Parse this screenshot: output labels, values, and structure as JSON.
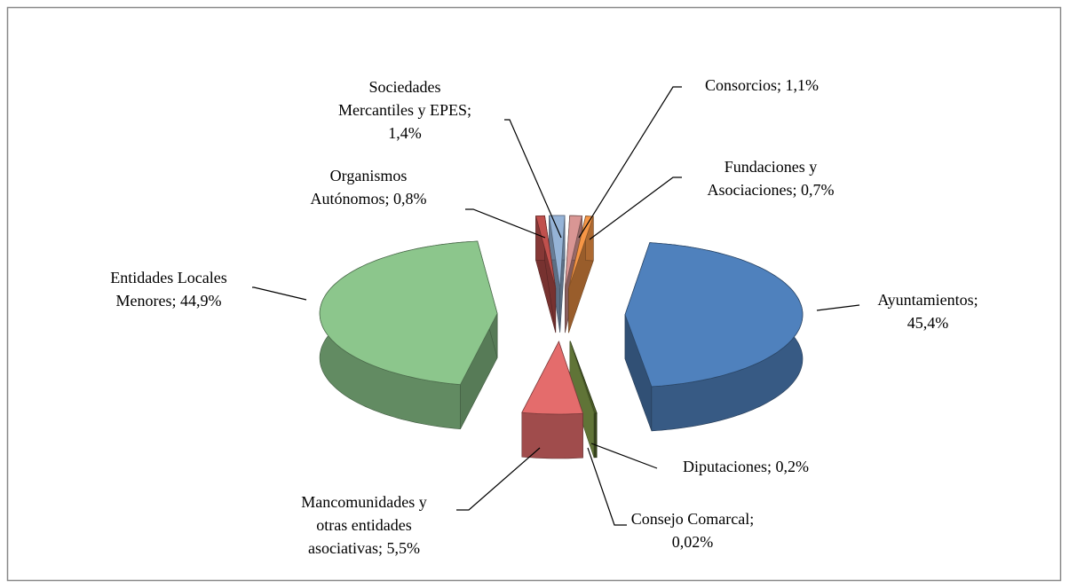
{
  "chart_data": {
    "type": "pie3d",
    "categories": [
      "Ayuntamientos",
      "Diputaciones",
      "Consejo Comarcal",
      "Mancomunidades y otras entidades asociativas",
      "Entidades Locales Menores",
      "Organismos Autónomos",
      "Sociedades Mercantiles y EPES",
      "Consorcios",
      "Fundaciones y Asociaciones"
    ],
    "values": [
      45.4,
      0.2,
      0.02,
      5.5,
      44.9,
      0.8,
      1.4,
      1.1,
      0.7
    ],
    "value_labels": [
      [
        "Ayuntamientos;",
        "45,4%"
      ],
      [
        "Diputaciones; 0,2%"
      ],
      [
        "Consejo Comarcal;",
        "0,02%"
      ],
      [
        "Mancomunidades y",
        "otras entidades",
        "asociativas; 5,5%"
      ],
      [
        "Entidades Locales",
        "Menores; 44,9%"
      ],
      [
        "Organismos",
        "Autónomos; 0,8%"
      ],
      [
        "Sociedades",
        "Mercantiles y EPES;",
        "1,4%"
      ],
      [
        "Consorcios; 1,1%"
      ],
      [
        "Fundaciones  y",
        "Asociaciones; 0,7%"
      ]
    ],
    "colors": [
      "#4f81bd",
      "#4f6228",
      "#9bbb59",
      "#e46c6c",
      "#8cc68c",
      "#c0504d",
      "#95b3d7",
      "#d99694",
      "#f79646"
    ]
  }
}
